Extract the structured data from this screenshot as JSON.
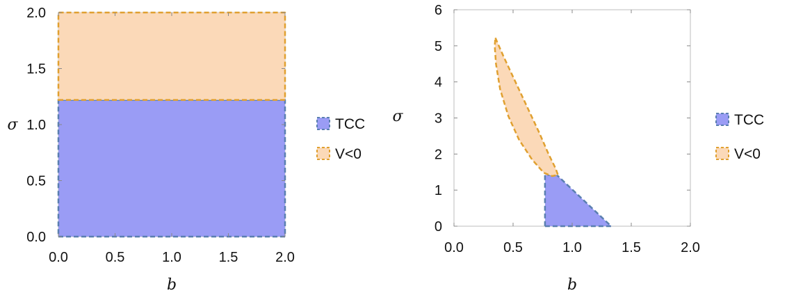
{
  "chart_data": [
    {
      "type": "area",
      "xlabel": "b",
      "ylabel": "σ",
      "xlim": [
        0,
        2
      ],
      "ylim": [
        0,
        2
      ],
      "x_ticks": [
        "0.0",
        "0.5",
        "1.0",
        "1.5",
        "2.0"
      ],
      "y_ticks": [
        "0.0",
        "0.5",
        "1.0",
        "1.5",
        "2.0"
      ],
      "legend_position": "right",
      "series": [
        {
          "name": "TCC",
          "fill": "#9a9cf5",
          "stroke": "#5a7fb0",
          "points": [
            [
              0,
              0
            ],
            [
              2,
              0
            ],
            [
              2,
              1.22
            ],
            [
              0,
              1.22
            ]
          ]
        },
        {
          "name": "V<0",
          "fill": "#fbd9b8",
          "stroke": "#e0a030",
          "points": [
            [
              0,
              1.22
            ],
            [
              2,
              1.22
            ],
            [
              2,
              2
            ],
            [
              0,
              2
            ]
          ]
        }
      ]
    },
    {
      "type": "area",
      "xlabel": "b",
      "ylabel": "σ",
      "xlim": [
        0,
        2
      ],
      "ylim": [
        0,
        6
      ],
      "x_ticks": [
        "0.0",
        "0.5",
        "1.0",
        "1.5",
        "2.0"
      ],
      "y_ticks": [
        "0",
        "1",
        "2",
        "3",
        "4",
        "5",
        "6"
      ],
      "legend_position": "right",
      "series": [
        {
          "name": "TCC",
          "fill": "#9a9cf5",
          "stroke": "#5a7fb0",
          "points": [
            [
              0.77,
              0
            ],
            [
              1.33,
              0
            ],
            [
              0.87,
              1.42
            ],
            [
              0.77,
              1.42
            ]
          ]
        },
        {
          "name": "V<0",
          "fill": "#fbd9b8",
          "stroke": "#e0a030",
          "points": [
            [
              0.35,
              5.22
            ],
            [
              0.42,
              4.7
            ],
            [
              0.52,
              4.0
            ],
            [
              0.62,
              3.3
            ],
            [
              0.72,
              2.6
            ],
            [
              0.8,
              2.0
            ],
            [
              0.86,
              1.6
            ],
            [
              0.88,
              1.42
            ],
            [
              0.83,
              1.39
            ],
            [
              0.76,
              1.48
            ],
            [
              0.66,
              1.85
            ],
            [
              0.55,
              2.4
            ],
            [
              0.46,
              3.05
            ],
            [
              0.39,
              3.8
            ],
            [
              0.355,
              4.5
            ],
            [
              0.345,
              5.0
            ],
            [
              0.35,
              5.22
            ]
          ]
        }
      ]
    }
  ]
}
